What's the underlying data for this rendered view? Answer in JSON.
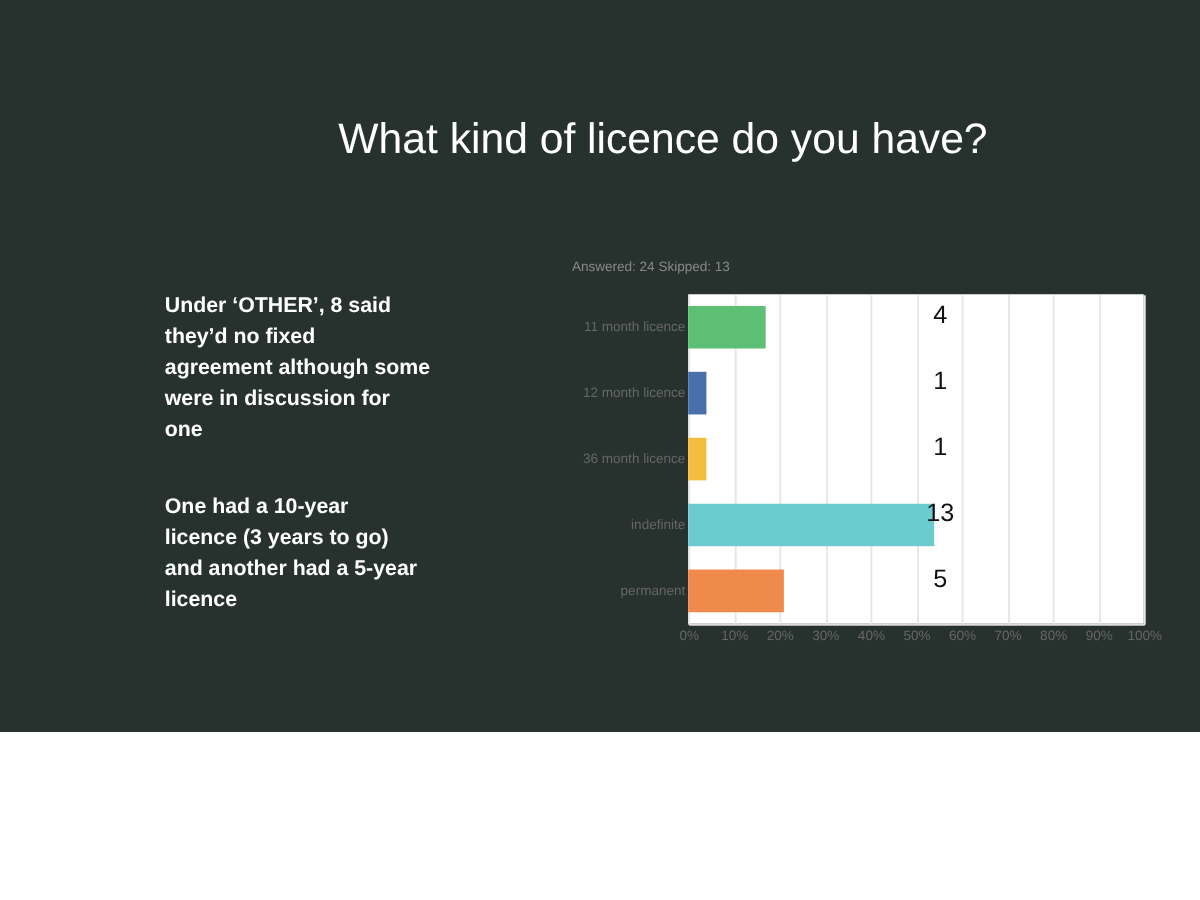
{
  "chart_data": {
    "type": "bar",
    "orientation": "horizontal",
    "title": "What kind of licence do you have?",
    "categories": [
      "11 month licence",
      "12 month licence",
      "36 month licence",
      "indefinite",
      "permanent"
    ],
    "values": [
      17,
      4,
      4,
      54,
      21
    ],
    "colors": [
      "#5dbf74",
      "#4a6fad",
      "#f5bd3d",
      "#6ccbcf",
      "#ef8a4c"
    ],
    "xlim": [
      0,
      100
    ],
    "xticks": [
      {
        "value": 0,
        "label": "0%"
      },
      {
        "value": 10,
        "label": "10%"
      },
      {
        "value": 20,
        "label": "20%"
      },
      {
        "value": 30,
        "label": "30%"
      },
      {
        "value": 40,
        "label": "40%"
      },
      {
        "value": 50,
        "label": "50%"
      },
      {
        "value": 60,
        "label": "60%"
      },
      {
        "value": 70,
        "label": "70%"
      },
      {
        "value": 80,
        "label": "80%"
      },
      {
        "value": 90,
        "label": "90%"
      },
      {
        "value": 100,
        "label": "100%"
      }
    ],
    "grid": "x",
    "annotations": [
      "Answered: 24    Skipped: 13",
      "Under ‘OTHER’, 8 said they’d no fixed agreement although some were in discussion for one",
      "One had a 10-year licence (3 years to go) and another had a 5-year licence",
      "4",
      "1",
      "1",
      "13",
      "5"
    ]
  }
}
